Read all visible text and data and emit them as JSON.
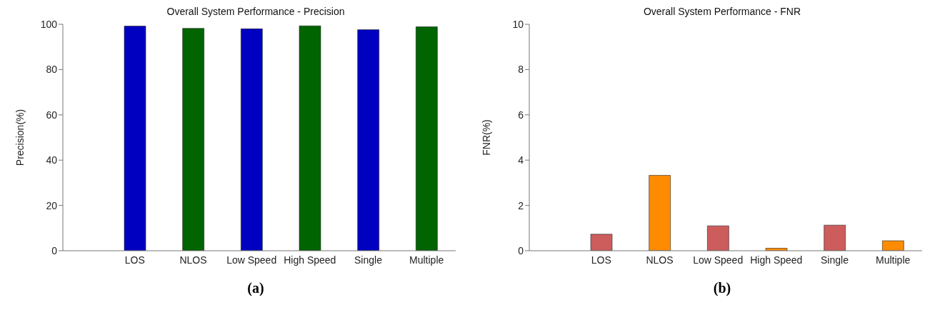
{
  "chart_data": [
    {
      "type": "bar",
      "title": "Overall System Performance - Precision",
      "ylabel": "Precision(%)",
      "categories": [
        "LOS",
        "NLOS",
        "Low Speed",
        "High Speed",
        "Single",
        "Multiple"
      ],
      "values": [
        99.2,
        98.2,
        98.0,
        99.3,
        97.6,
        98.9
      ],
      "colors": [
        "#0000c0",
        "#006400",
        "#0000c0",
        "#006400",
        "#0000c0",
        "#006400"
      ],
      "ylim": [
        0,
        100
      ],
      "yticks": [
        0,
        20,
        40,
        60,
        80,
        100
      ],
      "grid": false,
      "legend": false,
      "annotations": [
        "(a)"
      ]
    },
    {
      "type": "bar",
      "title": "Overall System Performance - FNR",
      "ylabel": "FNR(%)",
      "categories": [
        "LOS",
        "NLOS",
        "Low Speed",
        "High Speed",
        "Single",
        "Multiple"
      ],
      "values": [
        0.73,
        3.33,
        1.1,
        0.11,
        1.13,
        0.44
      ],
      "colors": [
        "#cd5c5c",
        "#ff8c00",
        "#cd5c5c",
        "#ff8c00",
        "#cd5c5c",
        "#ff8c00"
      ],
      "ylim": [
        0,
        10
      ],
      "yticks": [
        0,
        2,
        4,
        6,
        8,
        10
      ],
      "grid": false,
      "legend": false,
      "annotations": [
        "(b)"
      ]
    }
  ]
}
